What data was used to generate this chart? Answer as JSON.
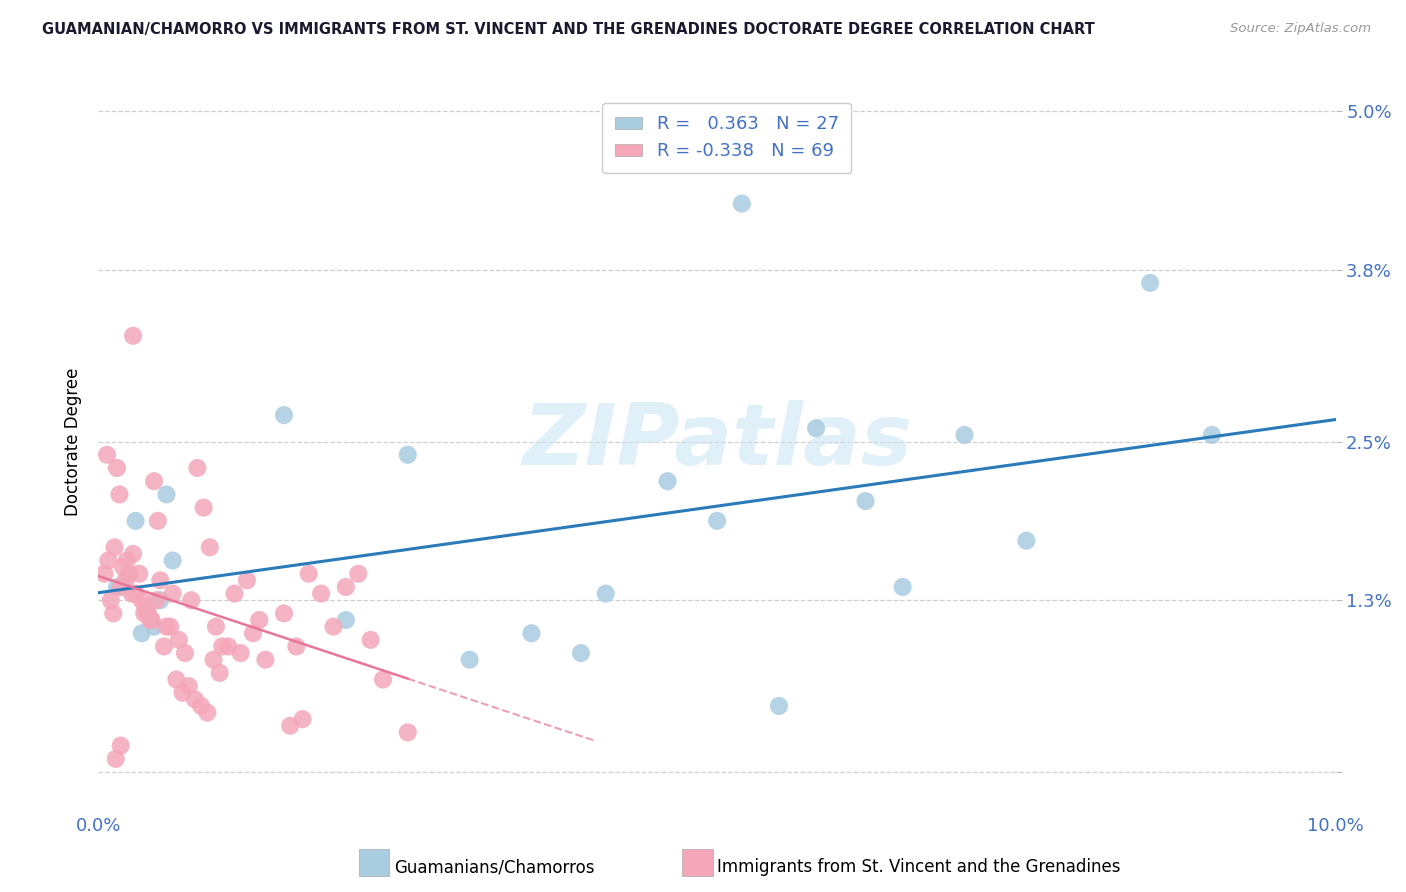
{
  "title": "GUAMANIAN/CHAMORRO VS IMMIGRANTS FROM ST. VINCENT AND THE GRENADINES DOCTORATE DEGREE CORRELATION CHART",
  "source": "Source: ZipAtlas.com",
  "ylabel": "Doctorate Degree",
  "x_min": 0.0,
  "x_max": 10.0,
  "y_min": -0.3,
  "y_max": 5.3,
  "y_ticks": [
    0.0,
    1.3,
    2.5,
    3.8,
    5.0
  ],
  "y_tick_labels": [
    "",
    "1.3%",
    "2.5%",
    "3.8%",
    "5.0%"
  ],
  "blue_R": "0.363",
  "blue_N": "27",
  "pink_R": "-0.338",
  "pink_N": "69",
  "legend_label_blue": "Guamanians/Chamorros",
  "legend_label_pink": "Immigrants from St. Vincent and the Grenadines",
  "blue_color": "#a8cce0",
  "pink_color": "#f4a7b9",
  "blue_line_color": "#2b7bba",
  "pink_line_color": "#e8769a",
  "text_color": "#4472c4",
  "title_color": "#2e4057",
  "watermark": "ZIPatlas",
  "blue_scatter_x": [
    0.55,
    0.3,
    0.25,
    0.15,
    0.5,
    0.6,
    0.4,
    0.35,
    0.45,
    1.5,
    2.5,
    3.5,
    3.9,
    4.6,
    5.2,
    5.8,
    6.2,
    5.0,
    4.1,
    7.5,
    8.5,
    7.0,
    2.0,
    3.0,
    6.5,
    5.5,
    9.0
  ],
  "blue_scatter_y": [
    2.1,
    1.9,
    1.5,
    1.4,
    1.3,
    1.6,
    1.2,
    1.05,
    1.1,
    2.7,
    2.4,
    1.05,
    0.9,
    2.2,
    4.3,
    2.6,
    2.05,
    1.9,
    1.35,
    1.75,
    3.7,
    2.55,
    1.15,
    0.85,
    1.4,
    0.5,
    2.55
  ],
  "pink_scatter_x": [
    0.05,
    0.08,
    0.1,
    0.12,
    0.15,
    0.18,
    0.2,
    0.22,
    0.25,
    0.28,
    0.3,
    0.35,
    0.38,
    0.4,
    0.42,
    0.45,
    0.48,
    0.5,
    0.55,
    0.6,
    0.65,
    0.7,
    0.75,
    0.8,
    0.85,
    0.9,
    0.95,
    1.0,
    1.1,
    1.2,
    1.3,
    1.5,
    1.6,
    1.7,
    1.8,
    1.9,
    2.0,
    2.1,
    2.2,
    2.3,
    0.07,
    0.13,
    0.17,
    0.23,
    0.27,
    0.33,
    0.37,
    0.43,
    0.47,
    0.53,
    0.58,
    0.63,
    0.68,
    0.73,
    0.78,
    0.83,
    0.88,
    0.93,
    0.98,
    1.05,
    1.15,
    1.25,
    1.35,
    1.55,
    1.65,
    0.28,
    0.18,
    2.5,
    0.14
  ],
  "pink_scatter_y": [
    1.5,
    1.6,
    1.3,
    1.2,
    2.3,
    1.4,
    1.55,
    1.45,
    1.5,
    1.65,
    1.35,
    1.3,
    1.25,
    1.2,
    1.15,
    2.2,
    1.9,
    1.45,
    1.1,
    1.35,
    1.0,
    0.9,
    1.3,
    2.3,
    2.0,
    1.7,
    1.1,
    0.95,
    1.35,
    1.45,
    1.15,
    1.2,
    0.95,
    1.5,
    1.35,
    1.1,
    1.4,
    1.5,
    1.0,
    0.7,
    2.4,
    1.7,
    2.1,
    1.6,
    1.35,
    1.5,
    1.2,
    1.15,
    1.3,
    0.95,
    1.1,
    0.7,
    0.6,
    0.65,
    0.55,
    0.5,
    0.45,
    0.85,
    0.75,
    0.95,
    0.9,
    1.05,
    0.85,
    0.35,
    0.4,
    3.3,
    0.2,
    0.3,
    0.1
  ]
}
